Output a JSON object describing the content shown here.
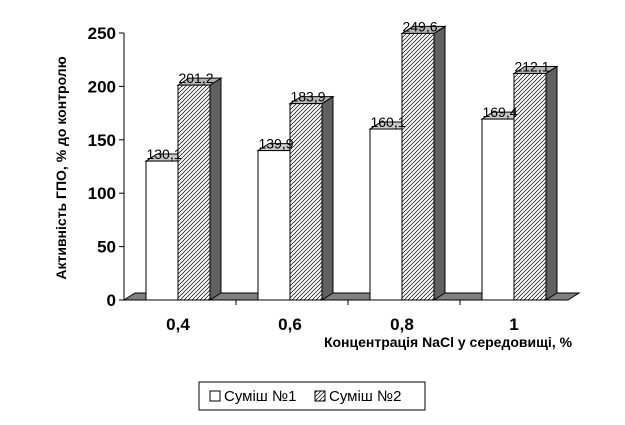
{
  "chart_data": {
    "type": "bar",
    "categories": [
      "0,4",
      "0,6",
      "0,8",
      "1"
    ],
    "series": [
      {
        "name": "Суміш №1",
        "values": [
          130.1,
          139.9,
          160.1,
          169.4
        ],
        "labels": [
          "130,1",
          "139,9",
          "160,1",
          "169,4"
        ],
        "color": "#ffffff",
        "pattern": "solid"
      },
      {
        "name": "Суміш №2",
        "values": [
          201.2,
          183.9,
          249.6,
          212.1
        ],
        "labels": [
          "201,2",
          "183,9",
          "249,6",
          "212,1"
        ],
        "color": "#ffffff",
        "pattern": "diagonal-hatch"
      }
    ],
    "yticks": [
      "0",
      "50",
      "100",
      "150",
      "200",
      "250"
    ],
    "ylim": [
      0,
      250
    ],
    "xlabel": "Концентрація NaCl у середовищі, %",
    "ylabel": "Активність ГПО, % до контролю",
    "legend_position": "bottom",
    "grid": false,
    "style": "3d-bar"
  }
}
